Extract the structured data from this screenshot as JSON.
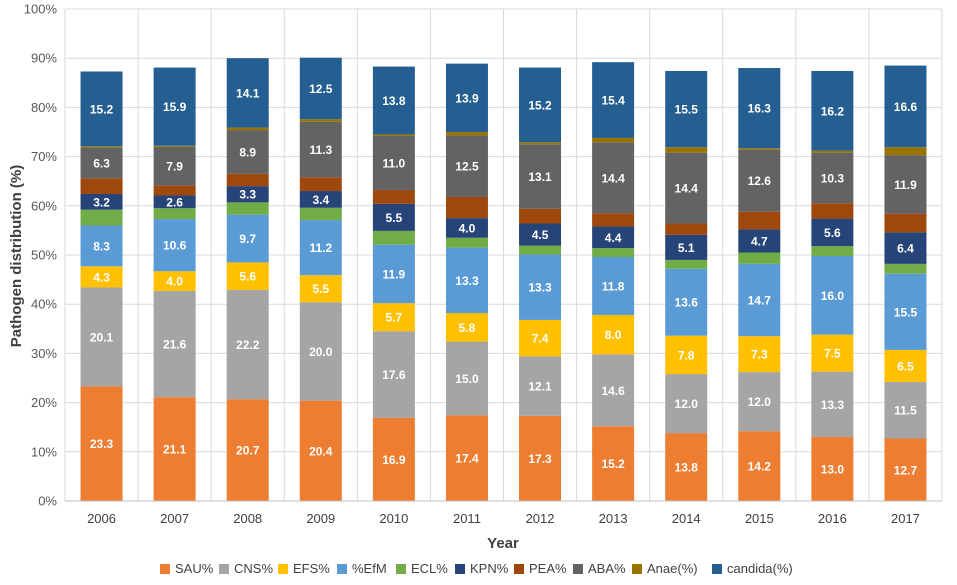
{
  "chart_data": {
    "type": "bar",
    "stacked": true,
    "xlabel": "Year",
    "ylabel": "Pathogen distribution (%)",
    "ylim": [
      0,
      100
    ],
    "y_ticks": [
      "0%",
      "10%",
      "20%",
      "30%",
      "40%",
      "50%",
      "60%",
      "70%",
      "80%",
      "90%",
      "100%"
    ],
    "grid": true,
    "legend_position": "bottom",
    "categories": [
      "2006",
      "2007",
      "2008",
      "2009",
      "2010",
      "2011",
      "2012",
      "2013",
      "2014",
      "2015",
      "2016",
      "2017"
    ],
    "series": [
      {
        "name": "SAU%",
        "color": "#ED7D31",
        "labeled": true,
        "values": [
          23.3,
          21.1,
          20.7,
          20.4,
          16.9,
          17.4,
          17.3,
          15.2,
          13.8,
          14.2,
          13.0,
          12.7
        ],
        "labels": [
          "23.3",
          "21.1",
          "20.7",
          "20.4",
          "16.9",
          "17.4",
          "17.3",
          "15.2",
          "13.8",
          "14.2",
          "13.0",
          "12.7"
        ]
      },
      {
        "name": "CNS%",
        "color": "#A5A5A5",
        "labeled": true,
        "values": [
          20.1,
          21.6,
          22.2,
          20.0,
          17.6,
          15.0,
          12.1,
          14.6,
          12.0,
          12.0,
          13.3,
          11.5
        ],
        "labels": [
          "20.1",
          "21.6",
          "22.2",
          "20.0",
          "17.6",
          "15.0",
          "12.1",
          "14.6",
          "12.0",
          "12.0",
          "13.3",
          "11.5"
        ]
      },
      {
        "name": "EFS%",
        "color": "#FFC000",
        "labeled": true,
        "values": [
          4.3,
          4.0,
          5.6,
          5.5,
          5.7,
          5.8,
          7.4,
          8.0,
          7.8,
          7.3,
          7.5,
          6.5
        ],
        "labels": [
          "4.3",
          "4.0",
          "5.6",
          "5.5",
          "5.7",
          "5.8",
          "7.4",
          "8.0",
          "7.8",
          "7.3",
          "7.5",
          "6.5"
        ]
      },
      {
        "name": "%EfM",
        "color": "#5B9BD5",
        "labeled": true,
        "values": [
          8.3,
          10.6,
          9.7,
          11.2,
          11.9,
          13.3,
          13.3,
          11.8,
          13.6,
          14.7,
          16.0,
          15.5
        ],
        "labels": [
          "8.3",
          "10.6",
          "9.7",
          "11.2",
          "11.9",
          "13.3",
          "13.3",
          "11.8",
          "13.6",
          "14.7",
          "16.0",
          "15.5"
        ]
      },
      {
        "name": "ECL%",
        "color": "#70AD47",
        "labeled": false,
        "values": [
          3.2,
          2.2,
          2.5,
          2.5,
          2.8,
          2.0,
          1.8,
          1.8,
          1.8,
          2.3,
          2.0,
          2.0
        ]
      },
      {
        "name": "KPN%",
        "color": "#264478",
        "labeled": true,
        "values": [
          3.2,
          2.6,
          3.3,
          3.4,
          5.5,
          4.0,
          4.5,
          4.4,
          5.1,
          4.7,
          5.6,
          6.4
        ],
        "labels": [
          "3.2",
          "2.6",
          "3.3",
          "3.4",
          "5.5",
          "4.0",
          "4.5",
          "4.4",
          "5.1",
          "4.7",
          "5.6",
          "6.4"
        ]
      },
      {
        "name": "PEA%",
        "color": "#9E480E",
        "labeled": false,
        "values": [
          3.2,
          2.0,
          2.5,
          2.8,
          2.8,
          4.3,
          3.0,
          2.7,
          2.3,
          3.6,
          3.1,
          3.8
        ]
      },
      {
        "name": "ABA%",
        "color": "#636363",
        "labeled": true,
        "values": [
          6.3,
          7.9,
          8.9,
          11.3,
          11.0,
          12.5,
          13.1,
          14.4,
          14.4,
          12.6,
          10.3,
          11.9
        ],
        "labels": [
          "6.3",
          "7.9",
          "8.9",
          "11.3",
          "11.0",
          "12.5",
          "13.1",
          "14.4",
          "14.4",
          "12.6",
          "10.3",
          "11.9"
        ]
      },
      {
        "name": "Anae(%)",
        "color": "#997300",
        "labeled": false,
        "values": [
          0.2,
          0.2,
          0.5,
          0.5,
          0.3,
          0.7,
          0.4,
          0.9,
          1.1,
          0.3,
          0.4,
          1.6
        ]
      },
      {
        "name": "candida(%)",
        "color": "#255E91",
        "labeled": true,
        "values": [
          15.2,
          15.9,
          14.1,
          12.5,
          13.8,
          13.9,
          15.2,
          15.4,
          15.5,
          16.3,
          16.2,
          16.6
        ],
        "labels": [
          "15.2",
          "15.9",
          "14.1",
          "12.5",
          "13.8",
          "13.9",
          "15.2",
          "15.4",
          "15.5",
          "16.3",
          "16.2",
          "16.6"
        ]
      }
    ]
  }
}
